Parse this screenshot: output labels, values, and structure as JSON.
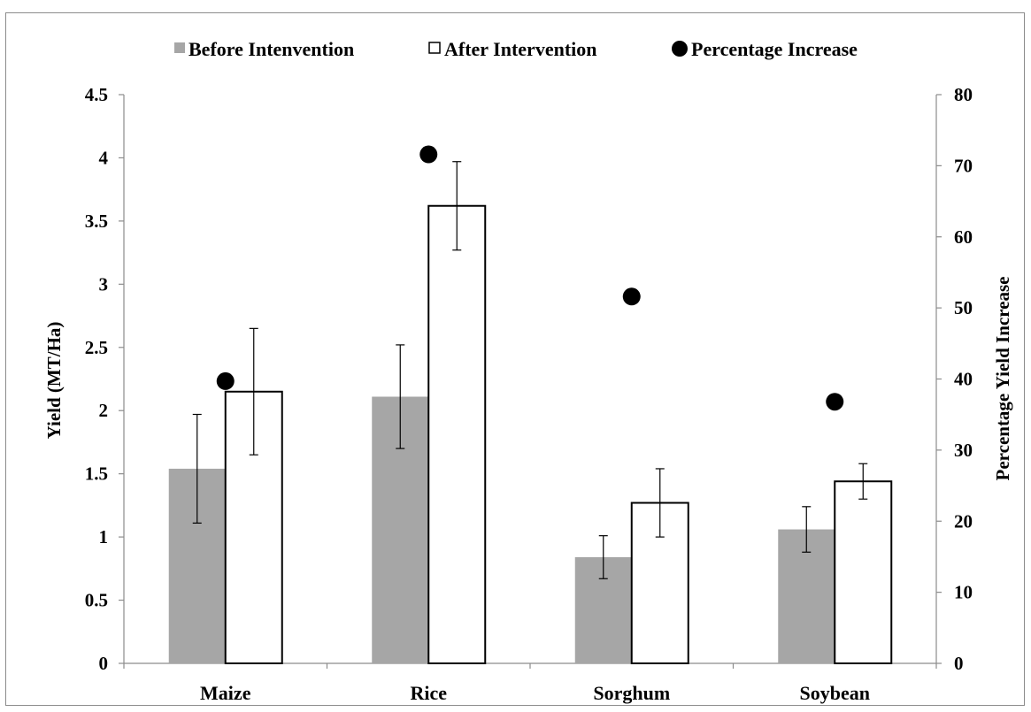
{
  "chart_data": {
    "type": "bar",
    "categories": [
      "Maize",
      "Rice",
      "Sorghum",
      "Soybean"
    ],
    "series": [
      {
        "name": "Before Intenvention",
        "axis": "left",
        "style": "gray-fill",
        "values": [
          1.54,
          2.11,
          0.84,
          1.06
        ],
        "error": [
          0.43,
          0.41,
          0.17,
          0.18
        ]
      },
      {
        "name": "After Intervention",
        "axis": "left",
        "style": "white-fill-black-outline",
        "values": [
          2.15,
          3.62,
          1.27,
          1.44
        ],
        "error": [
          0.5,
          0.35,
          0.27,
          0.14
        ]
      },
      {
        "name": "Percentage Increase",
        "axis": "right",
        "type": "scatter",
        "values": [
          39.7,
          71.6,
          51.6,
          36.8
        ]
      }
    ],
    "ylabel": "Yield (MT/Ha)",
    "ylim": [
      0,
      4.5
    ],
    "yticks": [
      "0",
      "0.5",
      "1",
      "1.5",
      "2",
      "2.5",
      "3",
      "3.5",
      "4",
      "4.5"
    ],
    "y2label": "Percentage Yield Increase",
    "y2lim": [
      0,
      80
    ],
    "y2ticks": [
      "0",
      "10",
      "20",
      "30",
      "40",
      "50",
      "60",
      "70",
      "80"
    ],
    "grid": false,
    "legend_position": "top",
    "colors": {
      "before": "#a6a6a6",
      "after": "#ffffff",
      "outline": "#000000",
      "marker": "#000000",
      "axis": "#8c8c8c"
    }
  }
}
